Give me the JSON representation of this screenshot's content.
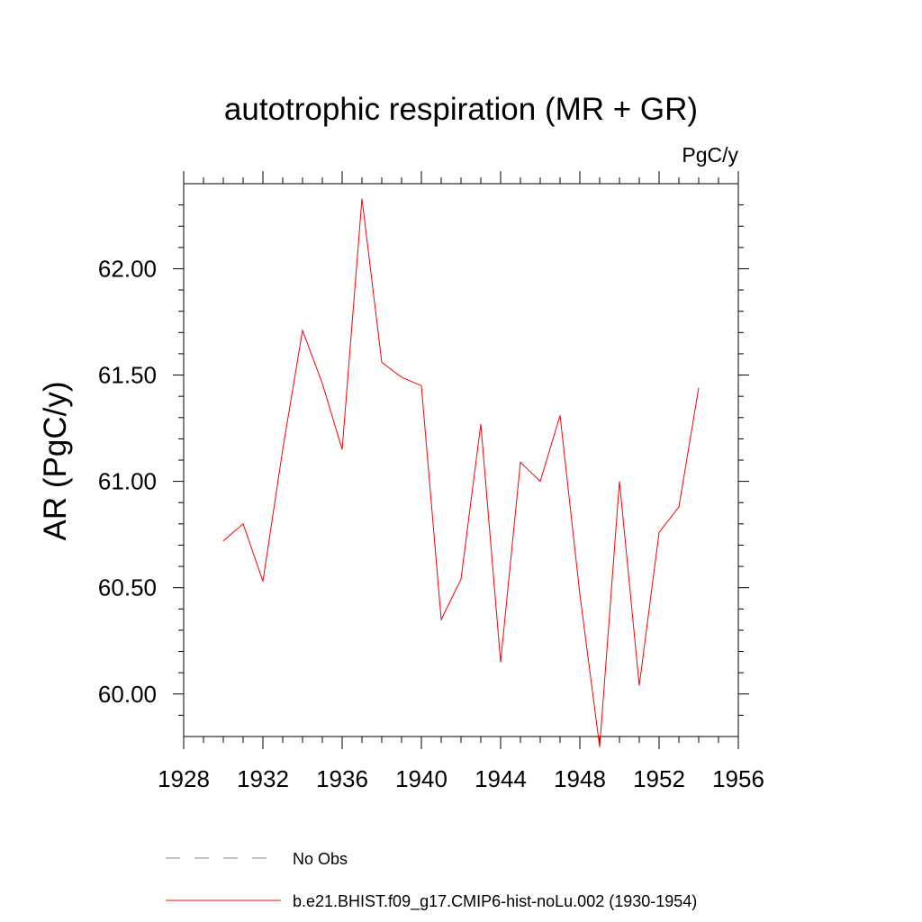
{
  "chart_data": {
    "type": "line",
    "title": "autotrophic respiration (MR + GR)",
    "units_label": "PgC/y",
    "ylabel": "AR  (PgC/y)",
    "xlabel": "",
    "xlim": [
      1928,
      1956
    ],
    "ylim": [
      59.8,
      62.4
    ],
    "x_ticks": [
      1928,
      1932,
      1936,
      1940,
      1944,
      1948,
      1952,
      1956
    ],
    "x_tick_labels": [
      "1928",
      "1932",
      "1936",
      "1940",
      "1944",
      "1948",
      "1952",
      "1956"
    ],
    "y_ticks": [
      60.0,
      60.5,
      61.0,
      61.5,
      62.0
    ],
    "y_tick_labels": [
      "60.00",
      "60.50",
      "61.00",
      "61.50",
      "62.00"
    ],
    "grid": false,
    "legend_position": "bottom",
    "series": [
      {
        "name": "No Obs",
        "color": "#8080c0",
        "dash": "dashed",
        "x": [],
        "y": []
      },
      {
        "name": "b.e21.BHIST.f09_g17.CMIP6-hist-noLu.002 (1930-1954)",
        "color": "#ff0000",
        "dash": "solid",
        "x": [
          1930,
          1931,
          1932,
          1933,
          1934,
          1935,
          1936,
          1937,
          1938,
          1939,
          1940,
          1941,
          1942,
          1943,
          1944,
          1945,
          1946,
          1947,
          1948,
          1949,
          1950,
          1951,
          1952,
          1953,
          1954
        ],
        "y": [
          60.72,
          60.8,
          60.53,
          61.15,
          61.71,
          61.46,
          61.15,
          62.33,
          61.56,
          61.49,
          61.45,
          60.35,
          60.54,
          61.27,
          60.15,
          61.09,
          61.0,
          61.31,
          60.47,
          59.75,
          61.0,
          60.04,
          60.76,
          60.88,
          61.44
        ]
      }
    ]
  }
}
